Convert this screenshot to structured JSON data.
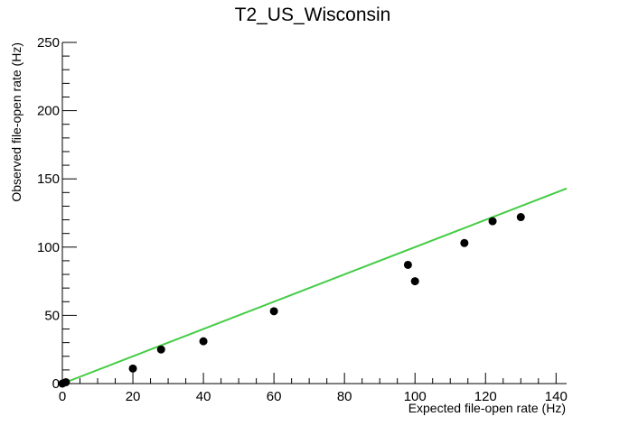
{
  "chart_data": {
    "type": "scatter",
    "title": "T2_US_Wisconsin",
    "xlabel": "Expected file-open rate (Hz)",
    "ylabel": "Observed file-open rate (Hz)",
    "xlim": [
      0,
      143
    ],
    "ylim": [
      0,
      250
    ],
    "x_ticks": [
      0,
      20,
      40,
      60,
      80,
      100,
      120,
      140
    ],
    "y_ticks": [
      0,
      50,
      100,
      150,
      200,
      250
    ],
    "grid": false,
    "legend": "none",
    "series": [
      {
        "color": "#000000",
        "marker": "circle",
        "points": [
          {
            "x": 0,
            "y": 0
          },
          {
            "x": 1,
            "y": 1
          },
          {
            "x": 20,
            "y": 11
          },
          {
            "x": 28,
            "y": 25
          },
          {
            "x": 40,
            "y": 31
          },
          {
            "x": 60,
            "y": 53
          },
          {
            "x": 98,
            "y": 87
          },
          {
            "x": 100,
            "y": 75
          },
          {
            "x": 114,
            "y": 103
          },
          {
            "x": 122,
            "y": 119
          },
          {
            "x": 130,
            "y": 122
          }
        ]
      }
    ],
    "reference_line": {
      "color": "#44cc44",
      "from": {
        "x": 0,
        "y": 0
      },
      "to": {
        "x": 143,
        "y": 143
      }
    }
  }
}
